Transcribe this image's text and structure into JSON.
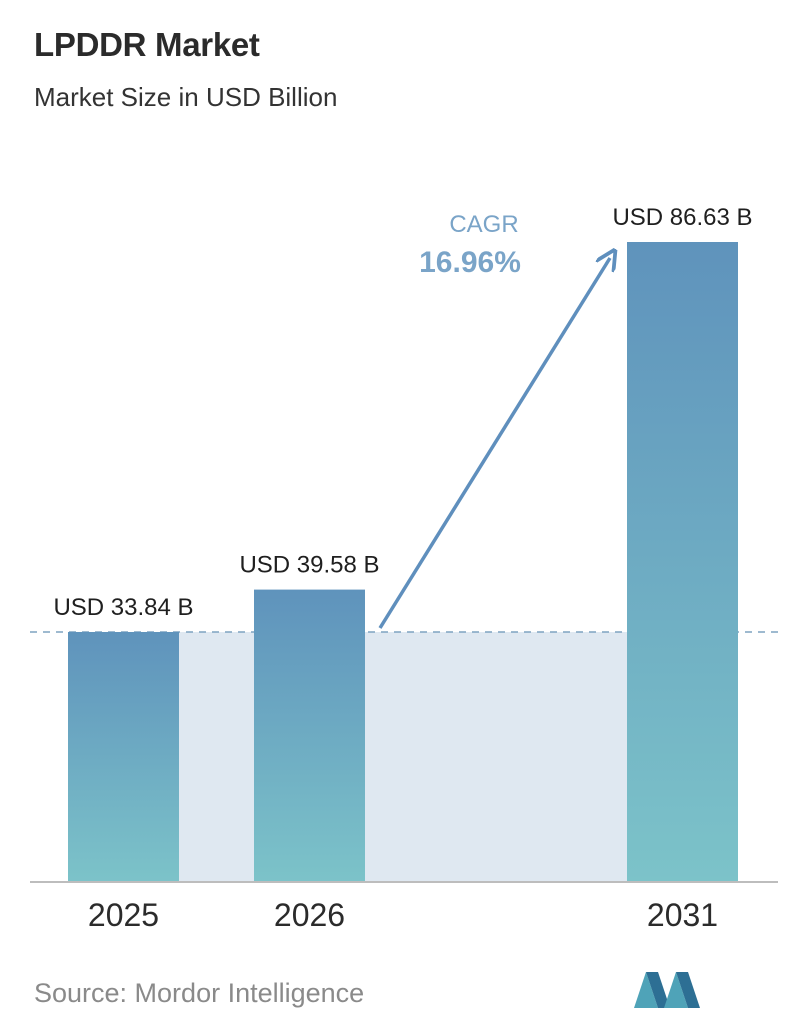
{
  "header": {
    "title": "LPDDR Market",
    "subtitle": "Market Size in USD Billion"
  },
  "cagr": {
    "label": "CAGR",
    "value": "16.96%"
  },
  "footer": {
    "source": "Source: Mordor Intelligence"
  },
  "colors": {
    "bar_top": "#5f93bc",
    "bar_bottom": "#7cc3c9",
    "band": "#dfe8f1",
    "arrow": "#5f8fbd",
    "cagr_label": "#7aa4c8",
    "axis": "#bdbdbd",
    "dashed_line": "#7fa3c1"
  },
  "chart_data": {
    "type": "bar",
    "title": "LPDDR Market",
    "subtitle": "Market Size in USD Billion",
    "categories": [
      "2025",
      "2026",
      "2031"
    ],
    "values": [
      33.84,
      39.58,
      86.63
    ],
    "labels": [
      "USD 33.84 B",
      "USD 39.58 B",
      "USD 86.63 B"
    ],
    "units": "USD Billion",
    "annotations": [
      {
        "label": "CAGR",
        "value": "16.96%"
      }
    ],
    "grid": false
  }
}
